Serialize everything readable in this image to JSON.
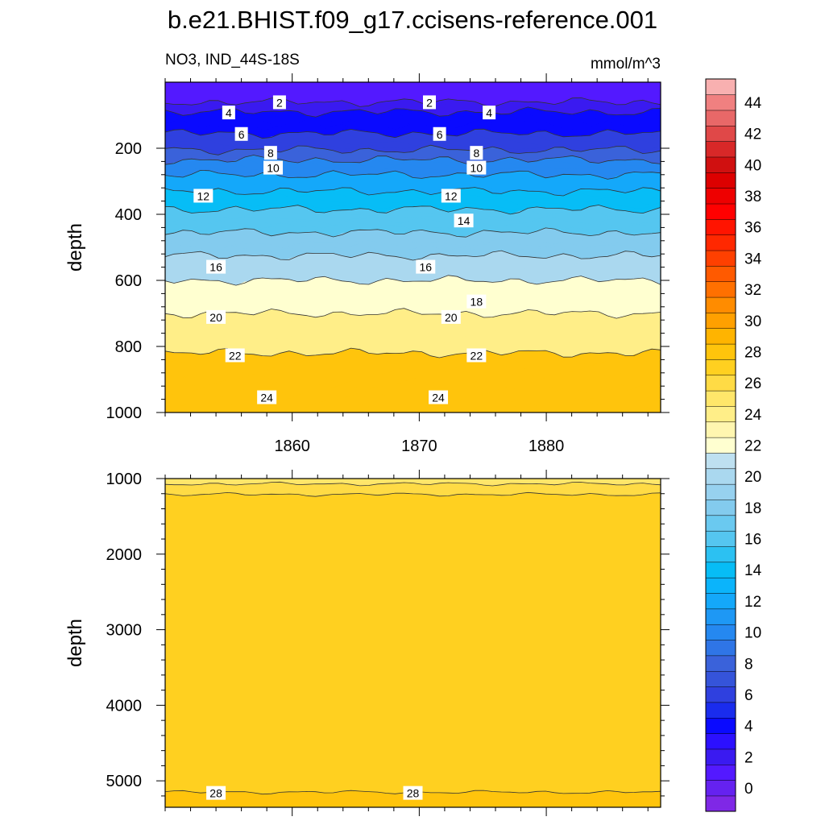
{
  "title": "b.e21.BHIST.f09_g17.ccisens-reference.001",
  "chart_data": {
    "type": "contour",
    "variable_label": "NO3, IND_44S-18S",
    "units": "mmol/m^3",
    "x_axis": {
      "label": "",
      "range": [
        1850,
        1889
      ],
      "ticks": [
        1860,
        1870,
        1880
      ],
      "tick_labels": [
        "1860",
        "1870",
        "1880"
      ]
    },
    "panels": [
      {
        "id": "upper",
        "ylabel": "depth",
        "ylim": [
          0,
          1000
        ],
        "yticks": [
          200,
          400,
          600,
          800,
          1000
        ],
        "ytick_labels": [
          "200",
          "400",
          "600",
          "800",
          "1000"
        ],
        "depth_top": 30,
        "contour_depths": [
          [
            2,
            60
          ],
          [
            4,
            90
          ],
          [
            6,
            155
          ],
          [
            8,
            205
          ],
          [
            10,
            235
          ],
          [
            12,
            280
          ],
          [
            14,
            330
          ],
          [
            16,
            385
          ],
          [
            18,
            455
          ],
          [
            20,
            525
          ],
          [
            22,
            600
          ],
          [
            24,
            700
          ],
          [
            28,
            820
          ]
        ],
        "contour_labels": [
          {
            "level": 2,
            "x": 1859,
            "depth": 62
          },
          {
            "level": 2,
            "x": 1870.8,
            "depth": 62
          },
          {
            "level": 4,
            "x": 1855,
            "depth": 93
          },
          {
            "level": 4,
            "x": 1875.5,
            "depth": 93
          },
          {
            "level": 6,
            "x": 1856,
            "depth": 158
          },
          {
            "level": 6,
            "x": 1871.6,
            "depth": 158
          },
          {
            "level": 8,
            "x": 1858.3,
            "depth": 215
          },
          {
            "level": 8,
            "x": 1874.5,
            "depth": 215
          },
          {
            "level": 10,
            "x": 1858.5,
            "depth": 260
          },
          {
            "level": 10,
            "x": 1874.5,
            "depth": 260
          },
          {
            "level": 12,
            "x": 1853,
            "depth": 345
          },
          {
            "level": 12,
            "x": 1872.5,
            "depth": 345
          },
          {
            "level": 14,
            "x": 1873.5,
            "depth": 420
          },
          {
            "level": 16,
            "x": 1854,
            "depth": 560
          },
          {
            "level": 16,
            "x": 1870.5,
            "depth": 560
          },
          {
            "level": 18,
            "x": 1874.5,
            "depth": 665
          },
          {
            "level": 20,
            "x": 1854,
            "depth": 712
          },
          {
            "level": 20,
            "x": 1872.5,
            "depth": 712
          },
          {
            "level": 22,
            "x": 1855.5,
            "depth": 828
          },
          {
            "level": 22,
            "x": 1874.5,
            "depth": 828
          },
          {
            "level": 24,
            "x": 1858,
            "depth": 955
          },
          {
            "level": 24,
            "x": 1871.5,
            "depth": 955
          }
        ]
      },
      {
        "id": "lower",
        "ylabel": "depth",
        "ylim": [
          1000,
          5350
        ],
        "yticks": [
          1000,
          2000,
          3000,
          4000,
          5000
        ],
        "ytick_labels": [
          "1000",
          "2000",
          "3000",
          "4000",
          "5000"
        ],
        "contour_depths": [
          [
            26,
            1070
          ],
          [
            27,
            1210
          ],
          [
            28,
            5150
          ]
        ],
        "contour_labels": [
          {
            "level": 28,
            "x": 1854,
            "depth": 5165
          },
          {
            "level": 28,
            "x": 1869.5,
            "depth": 5165
          }
        ]
      }
    ],
    "colorbar": {
      "levels_min": -1,
      "levels_step": 1,
      "colors": [
        "#7f28e6",
        "#6522f0",
        "#5319ff",
        "#3a1af0",
        "#2c10ff",
        "#0a0aff",
        "#1a2ced",
        "#2f40df",
        "#3554da",
        "#3a62da",
        "#2f75e6",
        "#2588f0",
        "#1e98f5",
        "#14a8fa",
        "#0bb4fb",
        "#07bdf6",
        "#2cc1f2",
        "#55c6f0",
        "#6ac9f0",
        "#83cbee",
        "#97d1ef",
        "#aad8ef",
        "#bee0f0",
        "#ffffd0",
        "#fff6b0",
        "#ffee88",
        "#ffe66a",
        "#ffdb45",
        "#ffd020",
        "#ffc40c",
        "#ffb400",
        "#ffa000",
        "#ff8c00",
        "#ff7000",
        "#ff5a00",
        "#ff4000",
        "#ff2800",
        "#ff1400",
        "#ff0000",
        "#ee0000",
        "#dd0000",
        "#d01010",
        "#d82828",
        "#e04848",
        "#e86868",
        "#f08080",
        "#f8b0b0"
      ],
      "tick_labels": [
        "0",
        "2",
        "4",
        "6",
        "8",
        "10",
        "12",
        "14",
        "16",
        "18",
        "20",
        "22",
        "24",
        "26",
        "28",
        "30",
        "32",
        "34",
        "36",
        "38",
        "40",
        "42",
        "44"
      ]
    }
  }
}
